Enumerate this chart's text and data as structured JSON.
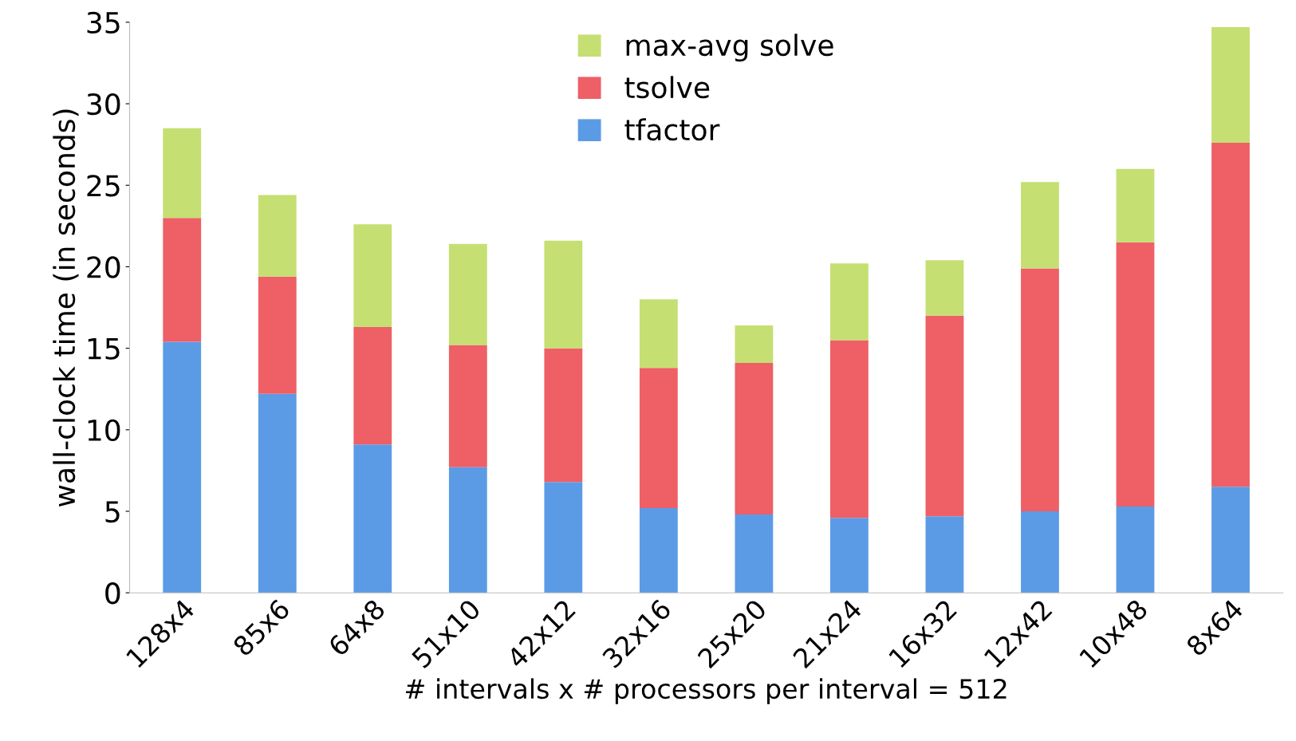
{
  "chart_data": {
    "type": "bar",
    "stacked": true,
    "xlabel": "# intervals x # processors per interval = 512",
    "ylabel": "wall-clock time (in seconds)",
    "categories": [
      "128x4",
      "85x6",
      "64x8",
      "51x10",
      "42x12",
      "32x16",
      "25x20",
      "21x24",
      "16x32",
      "12x42",
      "10x48",
      "8x64"
    ],
    "series": [
      {
        "name": "tfactor",
        "color": "#5b9be6",
        "values": [
          15.4,
          12.2,
          9.1,
          7.7,
          6.8,
          5.2,
          4.8,
          4.6,
          4.7,
          5.0,
          5.3,
          6.5
        ]
      },
      {
        "name": "tsolve",
        "color": "#ee5f66",
        "values": [
          7.6,
          7.2,
          7.2,
          7.5,
          8.2,
          8.6,
          9.3,
          10.9,
          12.3,
          14.9,
          16.2,
          21.1
        ]
      },
      {
        "name": "max-avg solve",
        "color": "#c5df72",
        "values": [
          5.5,
          5.0,
          6.3,
          6.2,
          6.6,
          4.2,
          2.3,
          4.7,
          3.4,
          5.3,
          4.5,
          7.1
        ]
      }
    ],
    "ylim": [
      0,
      35
    ],
    "yticks": [
      0,
      5,
      10,
      15,
      20,
      25,
      30,
      35
    ],
    "grid": false,
    "legend": "top"
  }
}
